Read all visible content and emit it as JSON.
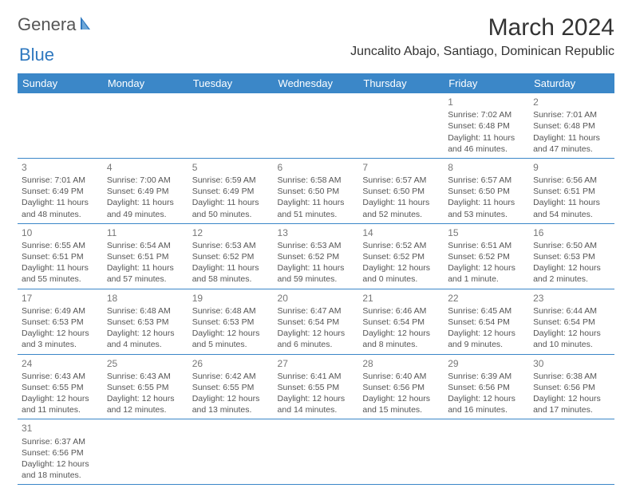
{
  "brand": {
    "part1": "Genera",
    "part2": "Blue"
  },
  "header": {
    "title": "March 2024",
    "location": "Juncalito Abajo, Santiago, Dominican Republic"
  },
  "colors": {
    "header_bg": "#3b87c8",
    "header_text": "#ffffff",
    "cell_border": "#3b87c8",
    "body_text": "#555555",
    "brand_blue": "#2f78bf"
  },
  "dayNames": [
    "Sunday",
    "Monday",
    "Tuesday",
    "Wednesday",
    "Thursday",
    "Friday",
    "Saturday"
  ],
  "weeks": [
    [
      null,
      null,
      null,
      null,
      null,
      {
        "d": "1",
        "sr": "7:02 AM",
        "ss": "6:48 PM",
        "dh": 11,
        "dm": 46
      },
      {
        "d": "2",
        "sr": "7:01 AM",
        "ss": "6:48 PM",
        "dh": 11,
        "dm": 47
      }
    ],
    [
      {
        "d": "3",
        "sr": "7:01 AM",
        "ss": "6:49 PM",
        "dh": 11,
        "dm": 48
      },
      {
        "d": "4",
        "sr": "7:00 AM",
        "ss": "6:49 PM",
        "dh": 11,
        "dm": 49
      },
      {
        "d": "5",
        "sr": "6:59 AM",
        "ss": "6:49 PM",
        "dh": 11,
        "dm": 50
      },
      {
        "d": "6",
        "sr": "6:58 AM",
        "ss": "6:50 PM",
        "dh": 11,
        "dm": 51
      },
      {
        "d": "7",
        "sr": "6:57 AM",
        "ss": "6:50 PM",
        "dh": 11,
        "dm": 52
      },
      {
        "d": "8",
        "sr": "6:57 AM",
        "ss": "6:50 PM",
        "dh": 11,
        "dm": 53
      },
      {
        "d": "9",
        "sr": "6:56 AM",
        "ss": "6:51 PM",
        "dh": 11,
        "dm": 54
      }
    ],
    [
      {
        "d": "10",
        "sr": "6:55 AM",
        "ss": "6:51 PM",
        "dh": 11,
        "dm": 55
      },
      {
        "d": "11",
        "sr": "6:54 AM",
        "ss": "6:51 PM",
        "dh": 11,
        "dm": 57
      },
      {
        "d": "12",
        "sr": "6:53 AM",
        "ss": "6:52 PM",
        "dh": 11,
        "dm": 58
      },
      {
        "d": "13",
        "sr": "6:53 AM",
        "ss": "6:52 PM",
        "dh": 11,
        "dm": 59
      },
      {
        "d": "14",
        "sr": "6:52 AM",
        "ss": "6:52 PM",
        "dh": 12,
        "dm": 0
      },
      {
        "d": "15",
        "sr": "6:51 AM",
        "ss": "6:52 PM",
        "dh": 12,
        "dm": 1,
        "dm_label": "minute"
      },
      {
        "d": "16",
        "sr": "6:50 AM",
        "ss": "6:53 PM",
        "dh": 12,
        "dm": 2
      }
    ],
    [
      {
        "d": "17",
        "sr": "6:49 AM",
        "ss": "6:53 PM",
        "dh": 12,
        "dm": 3
      },
      {
        "d": "18",
        "sr": "6:48 AM",
        "ss": "6:53 PM",
        "dh": 12,
        "dm": 4
      },
      {
        "d": "19",
        "sr": "6:48 AM",
        "ss": "6:53 PM",
        "dh": 12,
        "dm": 5
      },
      {
        "d": "20",
        "sr": "6:47 AM",
        "ss": "6:54 PM",
        "dh": 12,
        "dm": 6
      },
      {
        "d": "21",
        "sr": "6:46 AM",
        "ss": "6:54 PM",
        "dh": 12,
        "dm": 8
      },
      {
        "d": "22",
        "sr": "6:45 AM",
        "ss": "6:54 PM",
        "dh": 12,
        "dm": 9
      },
      {
        "d": "23",
        "sr": "6:44 AM",
        "ss": "6:54 PM",
        "dh": 12,
        "dm": 10
      }
    ],
    [
      {
        "d": "24",
        "sr": "6:43 AM",
        "ss": "6:55 PM",
        "dh": 12,
        "dm": 11
      },
      {
        "d": "25",
        "sr": "6:43 AM",
        "ss": "6:55 PM",
        "dh": 12,
        "dm": 12
      },
      {
        "d": "26",
        "sr": "6:42 AM",
        "ss": "6:55 PM",
        "dh": 12,
        "dm": 13
      },
      {
        "d": "27",
        "sr": "6:41 AM",
        "ss": "6:55 PM",
        "dh": 12,
        "dm": 14
      },
      {
        "d": "28",
        "sr": "6:40 AM",
        "ss": "6:56 PM",
        "dh": 12,
        "dm": 15
      },
      {
        "d": "29",
        "sr": "6:39 AM",
        "ss": "6:56 PM",
        "dh": 12,
        "dm": 16
      },
      {
        "d": "30",
        "sr": "6:38 AM",
        "ss": "6:56 PM",
        "dh": 12,
        "dm": 17
      }
    ],
    [
      {
        "d": "31",
        "sr": "6:37 AM",
        "ss": "6:56 PM",
        "dh": 12,
        "dm": 18
      },
      null,
      null,
      null,
      null,
      null,
      null
    ]
  ]
}
